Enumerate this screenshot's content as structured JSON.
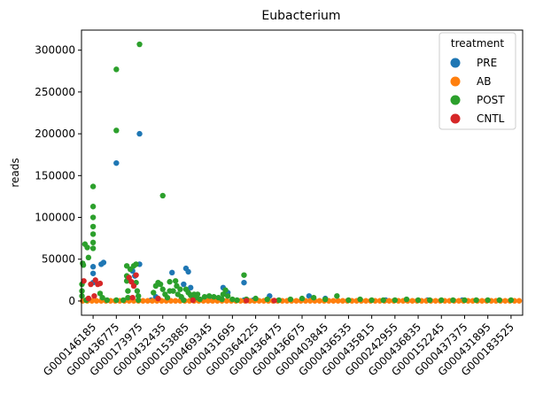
{
  "chart_data": {
    "type": "scatter",
    "title": "Eubacterium",
    "xlabel": "",
    "ylabel": "reads",
    "ylim": [
      -17000,
      324000
    ],
    "yticks": [
      0,
      50000,
      100000,
      150000,
      200000,
      250000,
      300000
    ],
    "categories": [
      "G000146185",
      "G000436775",
      "G000173975",
      "G000432435",
      "G000153885",
      "G000469345",
      "G000431695",
      "G000364225",
      "G000436475",
      "G000436675",
      "G000403845",
      "G000436535",
      "G000435815",
      "G000242955",
      "G000436835",
      "G000152245",
      "G000437375",
      "G000431895",
      "G000183525"
    ],
    "legend": {
      "title": "treatment",
      "placement": "top-right"
    },
    "series": [
      {
        "name": "PRE",
        "color": "#1f77b4",
        "points": [
          [
            0.0,
            41000
          ],
          [
            0.0,
            33000
          ],
          [
            0.0,
            22000
          ],
          [
            0.35,
            44000
          ],
          [
            0.45,
            46000
          ],
          [
            1.0,
            165000
          ],
          [
            1.5,
            28000
          ],
          [
            1.7,
            36000
          ],
          [
            1.8,
            30000
          ],
          [
            2.0,
            200000
          ],
          [
            2.0,
            44000
          ],
          [
            2.5,
            1000
          ],
          [
            2.7,
            5000
          ],
          [
            3.4,
            34000
          ],
          [
            4.0,
            39000
          ],
          [
            4.1,
            35000
          ],
          [
            4.2,
            16000
          ],
          [
            3.9,
            20000
          ],
          [
            5.1,
            1000
          ],
          [
            5.6,
            16000
          ],
          [
            5.8,
            10000
          ],
          [
            6.5,
            22000
          ],
          [
            6.5,
            1000
          ],
          [
            6.9,
            1000
          ],
          [
            7.6,
            6000
          ],
          [
            9.3,
            6000
          ],
          [
            10.0,
            3000
          ],
          [
            12.6,
            1000
          ],
          [
            13.5,
            1000
          ],
          [
            14.4,
            1000
          ],
          [
            15.9,
            1000
          ]
        ]
      },
      {
        "name": "AB",
        "color": "#ff7f0e",
        "points": [
          [
            -0.45,
            200
          ],
          [
            -0.25,
            200
          ],
          [
            -0.05,
            200
          ],
          [
            0.15,
            200
          ],
          [
            0.35,
            200
          ],
          [
            0.55,
            200
          ],
          [
            0.75,
            200
          ],
          [
            0.95,
            200
          ],
          [
            1.15,
            200
          ],
          [
            1.35,
            200
          ],
          [
            1.55,
            200
          ],
          [
            1.75,
            200
          ],
          [
            1.95,
            200
          ],
          [
            2.15,
            200
          ],
          [
            2.35,
            200
          ],
          [
            2.55,
            200
          ],
          [
            2.75,
            200
          ],
          [
            2.95,
            200
          ],
          [
            3.15,
            200
          ],
          [
            3.35,
            200
          ],
          [
            3.55,
            200
          ],
          [
            3.75,
            200
          ],
          [
            3.95,
            200
          ],
          [
            4.15,
            200
          ],
          [
            4.35,
            200
          ],
          [
            4.55,
            200
          ],
          [
            4.75,
            200
          ],
          [
            4.95,
            200
          ],
          [
            5.15,
            200
          ],
          [
            5.35,
            200
          ],
          [
            5.55,
            200
          ],
          [
            5.75,
            200
          ],
          [
            5.95,
            200
          ],
          [
            6.15,
            200
          ],
          [
            6.35,
            200
          ],
          [
            6.55,
            200
          ],
          [
            6.75,
            200
          ],
          [
            6.95,
            200
          ],
          [
            7.15,
            200
          ],
          [
            7.35,
            200
          ],
          [
            7.55,
            200
          ],
          [
            7.75,
            200
          ],
          [
            7.95,
            200
          ],
          [
            8.15,
            200
          ],
          [
            8.35,
            200
          ],
          [
            8.55,
            200
          ],
          [
            8.75,
            200
          ],
          [
            8.95,
            200
          ],
          [
            9.15,
            200
          ],
          [
            9.35,
            200
          ],
          [
            9.55,
            200
          ],
          [
            9.75,
            200
          ],
          [
            9.95,
            200
          ],
          [
            10.15,
            200
          ],
          [
            10.35,
            200
          ],
          [
            10.55,
            200
          ],
          [
            10.75,
            200
          ],
          [
            10.95,
            200
          ],
          [
            11.15,
            200
          ],
          [
            11.35,
            200
          ],
          [
            11.55,
            200
          ],
          [
            11.75,
            200
          ],
          [
            11.95,
            200
          ],
          [
            12.15,
            200
          ],
          [
            12.35,
            200
          ],
          [
            12.55,
            200
          ],
          [
            12.75,
            200
          ],
          [
            12.95,
            200
          ],
          [
            13.15,
            200
          ],
          [
            13.35,
            200
          ],
          [
            13.55,
            200
          ],
          [
            13.75,
            200
          ],
          [
            13.95,
            200
          ],
          [
            14.15,
            200
          ],
          [
            14.35,
            200
          ],
          [
            14.55,
            200
          ],
          [
            14.75,
            200
          ],
          [
            14.95,
            200
          ],
          [
            15.15,
            200
          ],
          [
            15.35,
            200
          ],
          [
            15.55,
            200
          ],
          [
            15.75,
            200
          ],
          [
            15.95,
            200
          ],
          [
            16.15,
            200
          ],
          [
            16.35,
            200
          ],
          [
            16.55,
            200
          ],
          [
            16.75,
            200
          ],
          [
            16.95,
            200
          ],
          [
            17.15,
            200
          ],
          [
            17.35,
            200
          ],
          [
            17.55,
            200
          ],
          [
            17.75,
            200
          ],
          [
            17.95,
            200
          ],
          [
            18.15,
            200
          ],
          [
            18.35,
            200
          ]
        ]
      },
      {
        "name": "POST",
        "color": "#2ca02c",
        "points": [
          [
            -0.48,
            20000
          ],
          [
            -0.48,
            12000
          ],
          [
            -0.48,
            6000
          ],
          [
            -0.45,
            45000
          ],
          [
            -0.42,
            43000
          ],
          [
            -0.35,
            68000
          ],
          [
            -0.25,
            64000
          ],
          [
            -0.2,
            52000
          ],
          [
            0.0,
            137000
          ],
          [
            0.0,
            113000
          ],
          [
            0.0,
            100000
          ],
          [
            0.0,
            89000
          ],
          [
            0.0,
            80000
          ],
          [
            0.0,
            70000
          ],
          [
            0.0,
            63000
          ],
          [
            -0.3,
            1000
          ],
          [
            -0.2,
            3000
          ],
          [
            0.3,
            9000
          ],
          [
            0.4,
            4000
          ],
          [
            0.6,
            1000
          ],
          [
            1.0,
            277000
          ],
          [
            1.0,
            204000
          ],
          [
            1.0,
            1000
          ],
          [
            1.3,
            1000
          ],
          [
            1.45,
            42000
          ],
          [
            1.45,
            30000
          ],
          [
            1.45,
            24000
          ],
          [
            1.5,
            12000
          ],
          [
            1.5,
            4000
          ],
          [
            1.6,
            38000
          ],
          [
            1.75,
            42000
          ],
          [
            1.85,
            44000
          ],
          [
            1.85,
            22000
          ],
          [
            1.9,
            12000
          ],
          [
            1.95,
            6000
          ],
          [
            1.95,
            1000
          ],
          [
            2.0,
            307000
          ],
          [
            2.6,
            10000
          ],
          [
            2.7,
            18000
          ],
          [
            2.8,
            22000
          ],
          [
            2.9,
            20000
          ],
          [
            3.0,
            126000
          ],
          [
            3.0,
            14000
          ],
          [
            3.1,
            8000
          ],
          [
            3.2,
            4000
          ],
          [
            3.3,
            12000
          ],
          [
            3.3,
            23000
          ],
          [
            3.45,
            12000
          ],
          [
            3.55,
            24000
          ],
          [
            3.6,
            18000
          ],
          [
            3.65,
            8000
          ],
          [
            3.75,
            14000
          ],
          [
            3.8,
            5000
          ],
          [
            3.9,
            1000
          ],
          [
            4.0,
            14000
          ],
          [
            4.1,
            10000
          ],
          [
            4.2,
            7000
          ],
          [
            4.3,
            3000
          ],
          [
            4.35,
            8000
          ],
          [
            4.45,
            4000
          ],
          [
            4.5,
            8000
          ],
          [
            4.6,
            2000
          ],
          [
            4.8,
            5000
          ],
          [
            5.0,
            6000
          ],
          [
            5.2,
            5000
          ],
          [
            5.4,
            4000
          ],
          [
            5.55,
            2000
          ],
          [
            5.6,
            8000
          ],
          [
            5.7,
            13000
          ],
          [
            5.8,
            6000
          ],
          [
            6.0,
            2000
          ],
          [
            6.2,
            1000
          ],
          [
            6.5,
            31000
          ],
          [
            6.6,
            2000
          ],
          [
            7.0,
            3000
          ],
          [
            7.5,
            2000
          ],
          [
            8.0,
            1000
          ],
          [
            8.5,
            2000
          ],
          [
            9.0,
            3000
          ],
          [
            9.5,
            4000
          ],
          [
            10.0,
            2000
          ],
          [
            10.5,
            6000
          ],
          [
            11.0,
            1000
          ],
          [
            11.5,
            2000
          ],
          [
            12.0,
            1000
          ],
          [
            12.5,
            1000
          ],
          [
            13.0,
            1000
          ],
          [
            13.5,
            2000
          ],
          [
            14.0,
            1000
          ],
          [
            14.5,
            1000
          ],
          [
            15.0,
            1000
          ],
          [
            15.5,
            1000
          ],
          [
            16.0,
            1000
          ],
          [
            16.5,
            1000
          ],
          [
            17.0,
            1000
          ],
          [
            17.5,
            1000
          ],
          [
            18.0,
            1000
          ]
        ]
      },
      {
        "name": "CNTL",
        "color": "#d62728",
        "points": [
          [
            -0.4,
            24000
          ],
          [
            -0.1,
            20000
          ],
          [
            0.1,
            25000
          ],
          [
            0.2,
            20000
          ],
          [
            0.3,
            21000
          ],
          [
            -0.2,
            3000
          ],
          [
            0.05,
            6000
          ],
          [
            1.55,
            28000
          ],
          [
            1.65,
            23000
          ],
          [
            1.75,
            18000
          ],
          [
            1.85,
            31000
          ],
          [
            1.7,
            4000
          ],
          [
            2.8,
            3000
          ],
          [
            4.3,
            1000
          ],
          [
            6.6,
            500
          ],
          [
            7.8,
            500
          ]
        ]
      }
    ]
  }
}
